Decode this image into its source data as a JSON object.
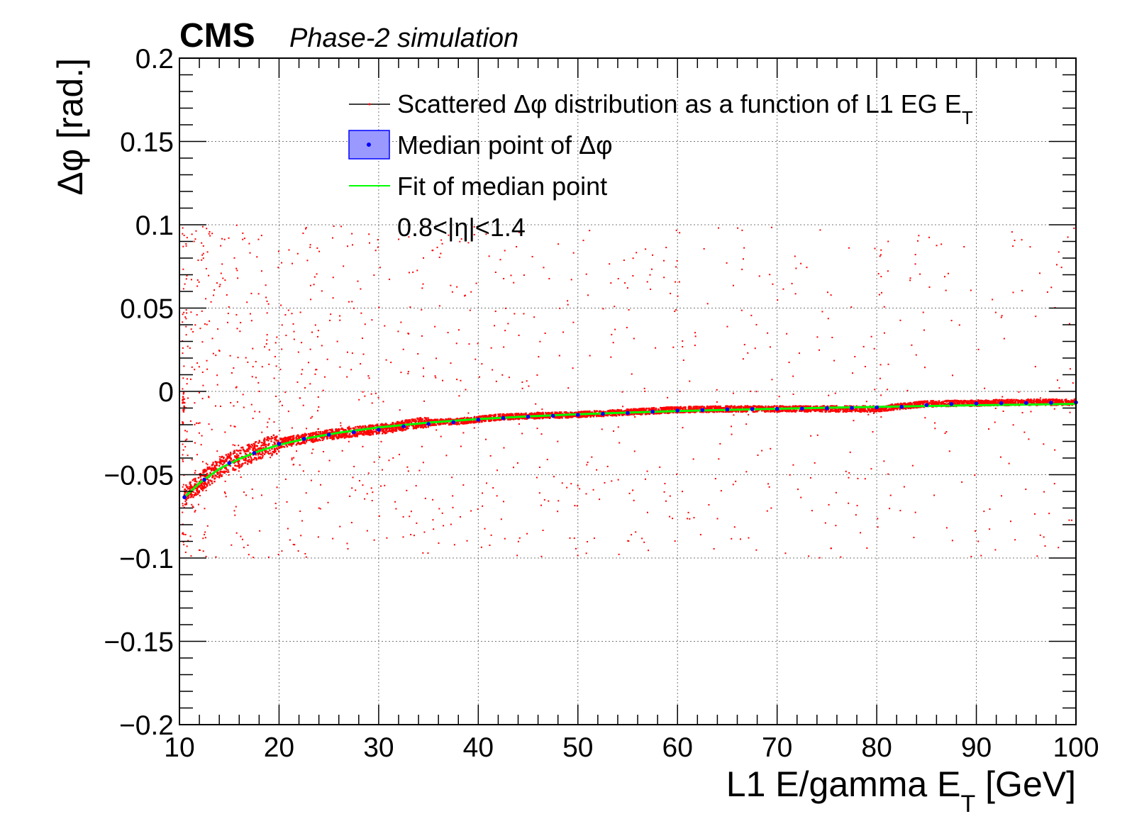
{
  "header": {
    "experiment": "CMS",
    "subtitle": "Phase-2 simulation"
  },
  "chart_data": {
    "type": "scatter",
    "xlabel_main": "L1 E/gamma E",
    "xlabel_sub": "T",
    "xlabel_unit": " [GeV]",
    "ylabel": "Δφ [rad.]",
    "xlim": [
      10,
      100
    ],
    "ylim": [
      -0.2,
      0.2
    ],
    "grid": true,
    "x_ticks": [
      10,
      20,
      30,
      40,
      50,
      60,
      70,
      80,
      90,
      100
    ],
    "x_tick_labels": [
      "10",
      "20",
      "30",
      "40",
      "50",
      "60",
      "70",
      "80",
      "90",
      "100"
    ],
    "y_ticks": [
      -0.2,
      -0.15,
      -0.1,
      -0.05,
      0,
      0.05,
      0.1,
      0.15,
      0.2
    ],
    "y_tick_labels": [
      "−0.2",
      "−0.15",
      "−0.1",
      "−0.05",
      "0",
      "0.05",
      "0.1",
      "0.15",
      "0.2"
    ],
    "legend": {
      "placement": "top-center",
      "entries": [
        {
          "label": "Scattered Δφ distribution as a function of L1 EG E",
          "sub": "T",
          "marker": "line",
          "color": "#000000"
        },
        {
          "label": "Median point of Δφ",
          "sub": "",
          "marker": "box",
          "color": "#0000ff"
        },
        {
          "label": "Fit of median point",
          "sub": "",
          "marker": "line",
          "color": "#00ff00"
        },
        {
          "label": "0.8<|η|<1.4",
          "sub": "",
          "marker": "none",
          "color": ""
        }
      ]
    },
    "series": [
      {
        "name": "Scattered Δφ distribution as a function of L1 EG E_T",
        "color": "#ff0000",
        "kind": "scatter-band",
        "band_center": [
          [
            10.5,
            -0.063
          ],
          [
            12,
            -0.055
          ],
          [
            14,
            -0.046
          ],
          [
            16,
            -0.04
          ],
          [
            18,
            -0.035
          ],
          [
            20,
            -0.031
          ],
          [
            22,
            -0.029
          ],
          [
            25,
            -0.026
          ],
          [
            28,
            -0.024
          ],
          [
            31,
            -0.022
          ],
          [
            34,
            -0.019
          ],
          [
            38,
            -0.018
          ],
          [
            42,
            -0.0155
          ],
          [
            46,
            -0.0145
          ],
          [
            50,
            -0.014
          ],
          [
            55,
            -0.0125
          ],
          [
            60,
            -0.011
          ],
          [
            65,
            -0.0105
          ],
          [
            70,
            -0.0105
          ],
          [
            75,
            -0.0105
          ],
          [
            80,
            -0.0105
          ],
          [
            85,
            -0.0075
          ],
          [
            90,
            -0.007
          ],
          [
            95,
            -0.0065
          ],
          [
            100,
            -0.0065
          ]
        ],
        "outlier_range": [
          -0.1,
          0.1
        ]
      },
      {
        "name": "Median point of Δφ",
        "color": "#0000ff",
        "kind": "points",
        "points": [
          [
            10.5,
            -0.0635
          ],
          [
            12.5,
            -0.053
          ],
          [
            15,
            -0.043
          ],
          [
            17.5,
            -0.037
          ],
          [
            20,
            -0.0315
          ],
          [
            22.5,
            -0.0285
          ],
          [
            25,
            -0.026
          ],
          [
            27.5,
            -0.0245
          ],
          [
            30,
            -0.023
          ],
          [
            32.5,
            -0.021
          ],
          [
            35,
            -0.0195
          ],
          [
            37.5,
            -0.0185
          ],
          [
            40,
            -0.017
          ],
          [
            42.5,
            -0.016
          ],
          [
            45,
            -0.0152
          ],
          [
            47.5,
            -0.0147
          ],
          [
            50,
            -0.0141
          ],
          [
            52.5,
            -0.0135
          ],
          [
            55,
            -0.013
          ],
          [
            57.5,
            -0.0122
          ],
          [
            60,
            -0.0115
          ],
          [
            62.5,
            -0.0112
          ],
          [
            65,
            -0.0108
          ],
          [
            67.5,
            -0.0106
          ],
          [
            70,
            -0.0105
          ],
          [
            72.5,
            -0.0103
          ],
          [
            75,
            -0.0101
          ],
          [
            77.5,
            -0.0099
          ],
          [
            80,
            -0.0096
          ],
          [
            82.5,
            -0.0093
          ],
          [
            85,
            -0.0082
          ],
          [
            87.5,
            -0.0076
          ],
          [
            90,
            -0.0073
          ],
          [
            92.5,
            -0.0071
          ],
          [
            95,
            -0.0069
          ],
          [
            97.5,
            -0.0068
          ],
          [
            100,
            -0.0066
          ]
        ]
      },
      {
        "name": "Fit of median point",
        "color": "#00ff00",
        "kind": "fit",
        "points": [
          [
            10.5,
            -0.0635
          ],
          [
            12,
            -0.055
          ],
          [
            14,
            -0.0465
          ],
          [
            16,
            -0.0405
          ],
          [
            18,
            -0.0358
          ],
          [
            20,
            -0.0321
          ],
          [
            23,
            -0.0279
          ],
          [
            26,
            -0.0248
          ],
          [
            30,
            -0.0216
          ],
          [
            35,
            -0.0187
          ],
          [
            40,
            -0.0166
          ],
          [
            45,
            -0.015
          ],
          [
            50,
            -0.0137
          ],
          [
            55,
            -0.0127
          ],
          [
            60,
            -0.0118
          ],
          [
            65,
            -0.0111
          ],
          [
            70,
            -0.0104
          ],
          [
            75,
            -0.0098
          ],
          [
            80,
            -0.0093
          ],
          [
            85,
            -0.0088
          ],
          [
            90,
            -0.0083
          ],
          [
            95,
            -0.0079
          ],
          [
            100,
            -0.0075
          ]
        ]
      }
    ]
  }
}
